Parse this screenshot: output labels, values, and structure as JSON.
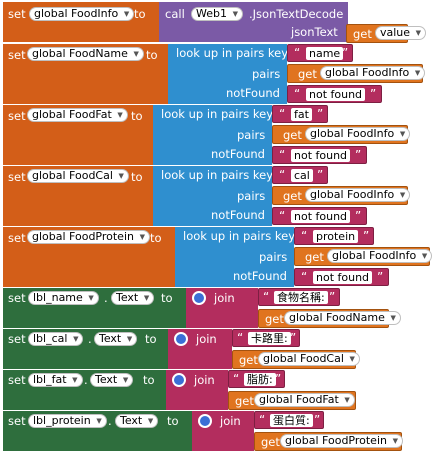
{
  "colors": {
    "set_orange": "#d35e18",
    "set_green": "#2e6e3d",
    "web_purple": "#7b5aa6",
    "dict_blue": "#2f8fcf",
    "text_magenta": "#b32d5e",
    "get_orange": "#e0741f"
  },
  "kw": {
    "set": "set",
    "to": "to",
    "get": "get",
    "call": "call",
    "join": "join",
    "dot": ".",
    "quote_open": "“",
    "quote_close": "”",
    "lookup": "look up in pairs  key",
    "pairs": "pairs",
    "notfound": "notFound",
    "jsontext": "jsonText",
    "method": ".JsonTextDecode"
  },
  "web": {
    "component": "Web1"
  },
  "decode": {
    "target": "global FoodInfo",
    "arg": "value"
  },
  "lookups": [
    {
      "target": "global FoodName",
      "key": "name",
      "pairs": "global FoodInfo",
      "notfound": "not found"
    },
    {
      "target": "global FoodFat",
      "key": "fat",
      "pairs": "global FoodInfo",
      "notfound": "not found"
    },
    {
      "target": "global FoodCal",
      "key": "cal",
      "pairs": "global FoodInfo",
      "notfound": "not found"
    },
    {
      "target": "global FoodProtein",
      "key": "protein",
      "pairs": "global FoodInfo",
      "notfound": "not found"
    }
  ],
  "labels": [
    {
      "component": "lbl_name",
      "property": "Text",
      "text": "食物名稱:",
      "var": "global FoodName"
    },
    {
      "component": "lbl_cal",
      "property": "Text",
      "text": "卡路里:",
      "var": "global FoodCal"
    },
    {
      "component": "lbl_fat",
      "property": "Text",
      "text": "脂肪:",
      "var": "global FoodFat"
    },
    {
      "component": "lbl_protein",
      "property": "Text",
      "text": "蛋白質:",
      "var": "global FoodProtein"
    }
  ]
}
